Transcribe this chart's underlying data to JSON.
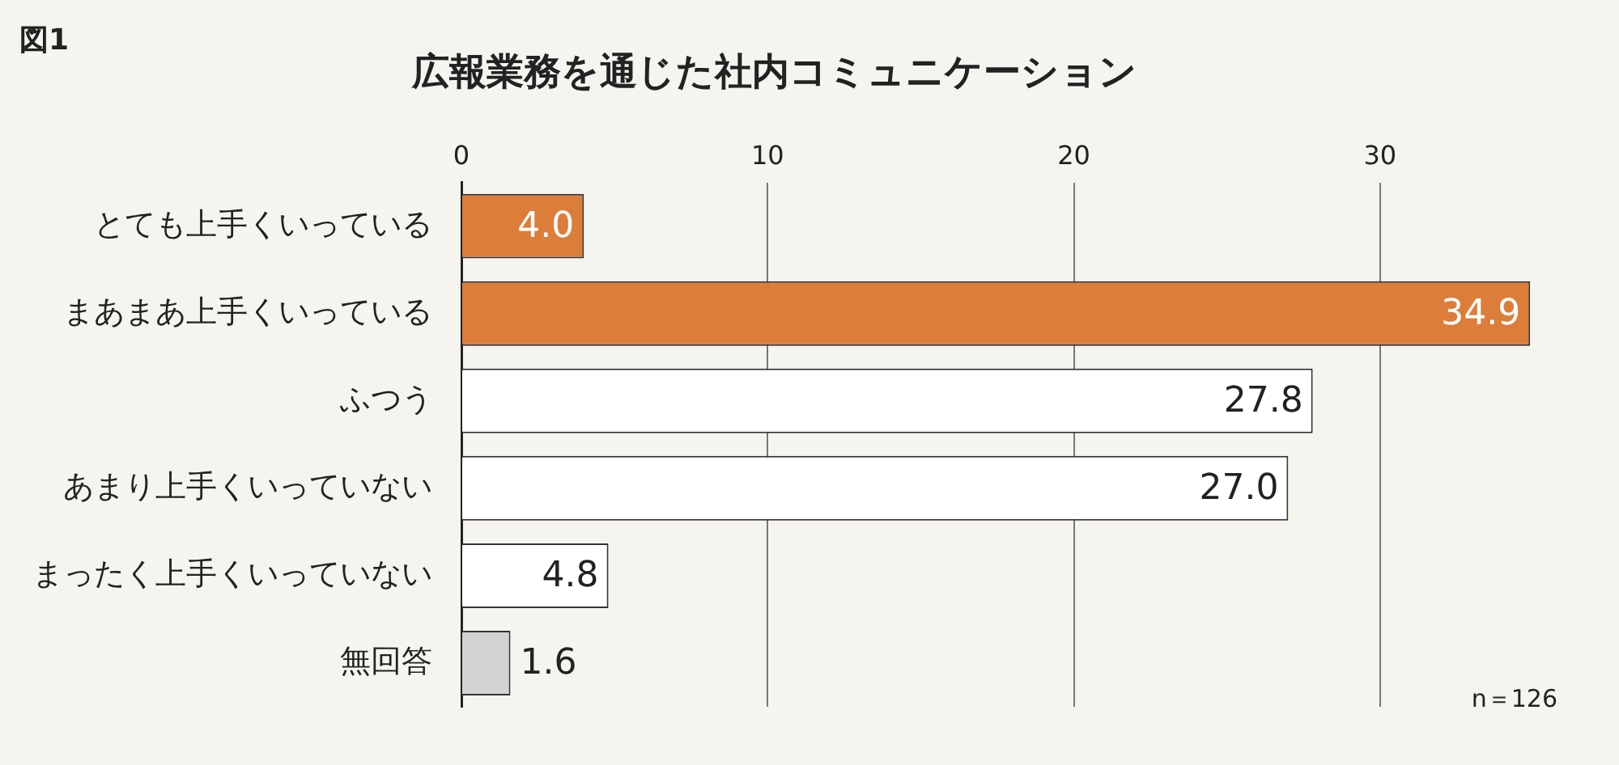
{
  "chart_data": {
    "type": "bar",
    "orientation": "horizontal",
    "title": "広報業務を通じた社内コミュニケーション",
    "categories": [
      "とても上手くいっている",
      "まあまあ上手くいっている",
      "ふつう",
      "あまり上手くいっていない",
      "まったく上手くいっていない",
      "無回答"
    ],
    "values": [
      4.0,
      34.9,
      27.8,
      27.0,
      4.8,
      1.6
    ],
    "value_labels": [
      "4.0",
      "34.9",
      "27.8",
      "27.0",
      "4.8",
      "1.6"
    ],
    "colors": [
      "#dd7d3a",
      "#dd7d3a",
      "#ffffff",
      "#ffffff",
      "#ffffff",
      "#d3d3d5"
    ],
    "xlim": [
      0,
      35
    ],
    "xticks": [
      0,
      10,
      20,
      30
    ],
    "grid": "x",
    "annotations": [
      "図1",
      "n＝126"
    ]
  }
}
